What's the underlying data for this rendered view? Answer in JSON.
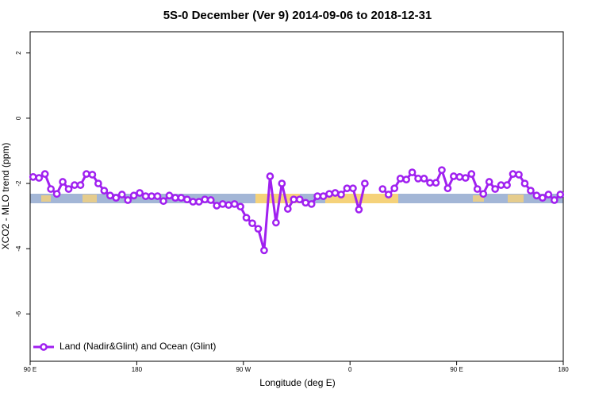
{
  "chart_data": {
    "type": "line",
    "title": "5S-0 December (Ver 9)   2014-09-06 to 2018-12-31",
    "xlabel": "Longitude (deg E)",
    "ylabel": "XCO2 - MLO trend (ppm)",
    "x": [
      92.5,
      97.5,
      102.5,
      107.5,
      112.5,
      117.5,
      122.5,
      127.5,
      132.5,
      137.5,
      142.5,
      147.5,
      152.5,
      157.5,
      162.5,
      167.5,
      172.5,
      177.5,
      182.5,
      187.5,
      192.5,
      197.5,
      202.5,
      207.5,
      212.5,
      217.5,
      222.5,
      227.5,
      232.5,
      237.5,
      242.5,
      247.5,
      252.5,
      257.5,
      262.5,
      267.5,
      272.5,
      277.5,
      282.5,
      287.5,
      292.5,
      297.5,
      302.5,
      307.5,
      312.5,
      317.5,
      322.5,
      327.5,
      332.5,
      337.5,
      342.5,
      347.5,
      352.5,
      357.5,
      362.5,
      367.5,
      372.5,
      377.5,
      382.5,
      387.5,
      392.5,
      397.5,
      402.5,
      407.5,
      412.5,
      417.5,
      422.5,
      427.5,
      432.5,
      437.5,
      442.5,
      447.5,
      452.5,
      457.5,
      462.5,
      467.5,
      472.5,
      477.5,
      482.5,
      487.5,
      492.5,
      497.5,
      502.5,
      507.5,
      512.5,
      517.5,
      522.5,
      527.5,
      532.5,
      537.5
    ],
    "series": [
      {
        "name": "Land (Nadir&Glint) and Ocean (Glint)",
        "color": "#a020f0",
        "values": [
          -1.8,
          -1.83,
          -1.71,
          -2.17,
          -2.32,
          -1.95,
          -2.17,
          -2.05,
          -2.05,
          -1.71,
          -1.73,
          -2.0,
          -2.22,
          -2.37,
          -2.44,
          -2.34,
          -2.51,
          -2.37,
          -2.29,
          -2.39,
          -2.39,
          -2.39,
          -2.54,
          -2.37,
          -2.44,
          -2.44,
          -2.49,
          -2.56,
          -2.56,
          -2.49,
          -2.51,
          -2.68,
          -2.63,
          -2.66,
          -2.63,
          -2.71,
          -3.05,
          -3.22,
          -3.39,
          -4.05,
          -1.78,
          -3.2,
          -2.0,
          -2.78,
          -2.49,
          -2.49,
          -2.59,
          -2.63,
          -2.39,
          -2.39,
          -2.32,
          -2.29,
          -2.34,
          -2.15,
          -2.15,
          -2.8,
          -2.0,
          null,
          null,
          -2.17,
          -2.34,
          -2.15,
          -1.85,
          -1.88,
          -1.66,
          -1.85,
          -1.85,
          -1.98,
          -1.98,
          -1.59,
          -2.15,
          -1.78,
          -1.8,
          -1.83,
          -1.71,
          -2.17,
          -2.32,
          -1.95,
          -2.17,
          -2.05,
          -2.05,
          -1.71,
          -1.73,
          -2.0,
          -2.22,
          -2.37,
          -2.44,
          -2.34,
          -2.51,
          -2.34
        ]
      }
    ],
    "xlim": [
      90,
      540
    ],
    "xticks": [
      {
        "value": 90,
        "label": "90 E"
      },
      {
        "value": 180,
        "label": "180"
      },
      {
        "value": 270,
        "label": "90 W"
      },
      {
        "value": 360,
        "label": "0"
      },
      {
        "value": 450,
        "label": "90 E"
      },
      {
        "value": 540,
        "label": "180"
      }
    ],
    "ylim": [
      -7.45,
      2.65
    ],
    "yticks": [
      2,
      0,
      -2,
      -4,
      -6
    ],
    "legend": "bottom-left"
  }
}
